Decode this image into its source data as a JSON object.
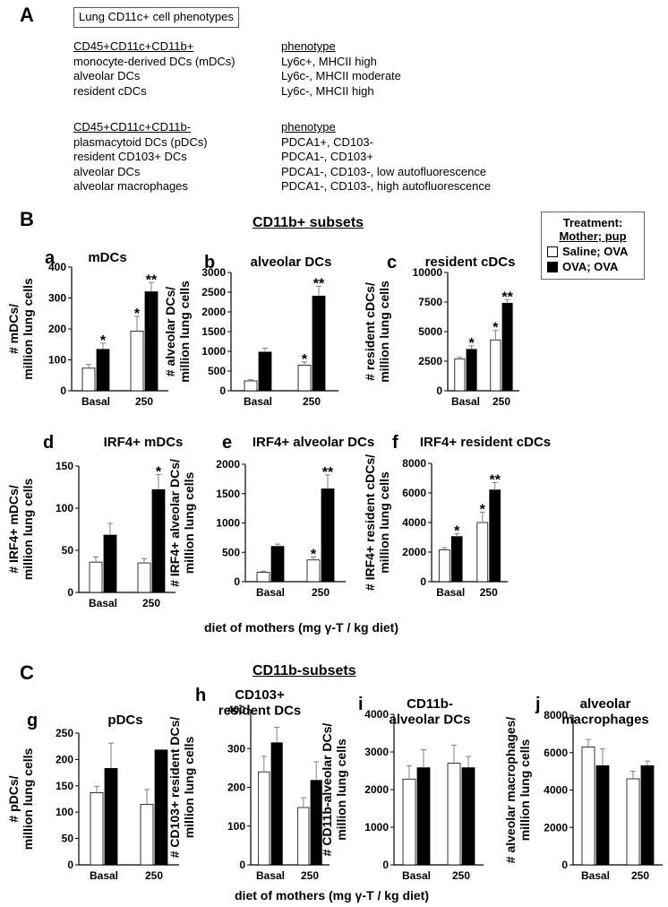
{
  "sections": {
    "A": "A",
    "B": "B",
    "C": "C"
  },
  "table": {
    "title": "Lung CD11c+ cell phenotypes",
    "group1": {
      "header": "CD45+CD11c+CD11b+",
      "pheno_header": "phenotype",
      "rows": [
        {
          "name": "monocyte-derived DCs (mDCs)",
          "pheno": "Ly6c+, MHCII high"
        },
        {
          "name": "alveolar DCs",
          "pheno": "Ly6c-, MHCII moderate"
        },
        {
          "name": "resident cDCs",
          "pheno": "Ly6c-, MHCII high"
        }
      ]
    },
    "group2": {
      "header": "CD45+CD11c+CD11b-",
      "pheno_header": "phenotype",
      "rows": [
        {
          "name": "plasmacytoid DCs (pDCs)",
          "pheno": "PDCA1+, CD103-"
        },
        {
          "name": "resident CD103+ DCs",
          "pheno": "PDCA1-, CD103+"
        },
        {
          "name": "alveolar DCs",
          "pheno": "PDCA1-, CD103-, low autofluorescence"
        },
        {
          "name": "alveolar macrophages",
          "pheno": "PDCA1-, CD103-, high autofluorescence"
        }
      ]
    }
  },
  "headers": {
    "b": "CD11b+ subsets",
    "c": "CD11b-subsets"
  },
  "legend": {
    "title": "Treatment:",
    "subtitle": "Mother; pup",
    "items": [
      {
        "label": "Saline; OVA",
        "color": "#ffffff"
      },
      {
        "label": "OVA; OVA",
        "color": "#000000"
      }
    ]
  },
  "footers": {
    "b": "diet of mothers (mg γ-T / kg diet)",
    "c": "diet of mothers (mg γ-T / kg diet)"
  },
  "colors": {
    "saline": "#ffffff",
    "ova": "#000000",
    "axis": "#000000",
    "error": "#808080"
  },
  "chart_data": [
    {
      "id": "a",
      "panel_letter": "a",
      "type": "bar",
      "title": "mDCs",
      "ylabel": "# mDCs/\nmillion lung cells",
      "categories": [
        "Basal",
        "250"
      ],
      "ylim": [
        0,
        400
      ],
      "yticks": [
        0,
        100,
        200,
        300,
        400
      ],
      "series": [
        {
          "name": "Saline; OVA",
          "values": [
            73,
            193
          ],
          "errors": [
            12,
            48
          ]
        },
        {
          "name": "OVA; OVA",
          "values": [
            134,
            320
          ],
          "errors": [
            20,
            30
          ]
        }
      ],
      "annotations": [
        [
          "",
          "*"
        ],
        [
          "*",
          "**"
        ]
      ]
    },
    {
      "id": "b",
      "panel_letter": "b",
      "type": "bar",
      "title": "alveolar DCs",
      "ylabel": "# alveolar DCs/\nmillion lung cells",
      "categories": [
        "Basal",
        "250"
      ],
      "ylim": [
        0,
        3000
      ],
      "yticks": [
        0,
        500,
        1000,
        1500,
        2000,
        2500,
        3000
      ],
      "series": [
        {
          "name": "Saline; OVA",
          "values": [
            250,
            650
          ],
          "errors": [
            30,
            80
          ]
        },
        {
          "name": "OVA; OVA",
          "values": [
            980,
            2400
          ],
          "errors": [
            100,
            250
          ]
        }
      ],
      "annotations": [
        [
          "",
          ""
        ],
        [
          "*",
          "**"
        ]
      ]
    },
    {
      "id": "c",
      "panel_letter": "c",
      "type": "bar",
      "title": "resident cDCs",
      "ylabel": "# resident cDCs/\nmillion lung cells",
      "categories": [
        "Basal",
        "250"
      ],
      "ylim": [
        0,
        10000
      ],
      "yticks": [
        0,
        2500,
        5000,
        7500,
        10000
      ],
      "series": [
        {
          "name": "Saline; OVA",
          "values": [
            2700,
            4300
          ],
          "errors": [
            150,
            800
          ]
        },
        {
          "name": "OVA; OVA",
          "values": [
            3500,
            7400
          ],
          "errors": [
            300,
            300
          ]
        }
      ],
      "annotations": [
        [
          "",
          "*"
        ],
        [
          "*",
          "**"
        ]
      ]
    },
    {
      "id": "d",
      "panel_letter": "d",
      "type": "bar",
      "title": "IRF4+ mDCs",
      "ylabel": "# IRF4+ mDCs/\nmillion lung cells",
      "categories": [
        "Basal",
        "250"
      ],
      "ylim": [
        0,
        150
      ],
      "yticks": [
        0,
        50,
        100,
        150
      ],
      "series": [
        {
          "name": "Saline; OVA",
          "values": [
            36,
            35
          ],
          "errors": [
            6,
            5
          ]
        },
        {
          "name": "OVA; OVA",
          "values": [
            68,
            122
          ],
          "errors": [
            14,
            18
          ]
        }
      ],
      "annotations": [
        [
          "",
          ""
        ],
        [
          "",
          "*"
        ]
      ]
    },
    {
      "id": "e",
      "panel_letter": "e",
      "type": "bar",
      "title": "IRF4+ alveolar DCs",
      "ylabel": "# IRF4+ alveolar DCs/\nmillion lung cells",
      "categories": [
        "Basal",
        "250"
      ],
      "ylim": [
        0,
        2000
      ],
      "yticks": [
        0,
        500,
        1000,
        1500,
        2000
      ],
      "series": [
        {
          "name": "Saline; OVA",
          "values": [
            160,
            370
          ],
          "errors": [
            20,
            50
          ]
        },
        {
          "name": "OVA; OVA",
          "values": [
            600,
            1580
          ],
          "errors": [
            40,
            240
          ]
        }
      ],
      "annotations": [
        [
          "",
          ""
        ],
        [
          "*",
          "**"
        ]
      ]
    },
    {
      "id": "f",
      "panel_letter": "f",
      "type": "bar",
      "title": "IRF4+ resident cDCs",
      "ylabel": "# IRF4+ resident cDCs/\nmillion lung cells",
      "categories": [
        "Basal",
        "250"
      ],
      "ylim": [
        0,
        8000
      ],
      "yticks": [
        0,
        2000,
        4000,
        6000,
        8000
      ],
      "series": [
        {
          "name": "Saline; OVA",
          "values": [
            2150,
            4000
          ],
          "errors": [
            150,
            700
          ]
        },
        {
          "name": "OVA; OVA",
          "values": [
            3050,
            6200
          ],
          "errors": [
            200,
            500
          ]
        }
      ],
      "annotations": [
        [
          "",
          "*"
        ],
        [
          "*",
          "**"
        ]
      ]
    },
    {
      "id": "g",
      "panel_letter": "g",
      "type": "bar",
      "title": "pDCs",
      "ylabel": "# pDCs/\nmillion lung cells",
      "categories": [
        "Basal",
        "250"
      ],
      "ylim": [
        0,
        250
      ],
      "yticks": [
        0,
        50,
        100,
        150,
        200,
        250
      ],
      "series": [
        {
          "name": "Saline; OVA",
          "values": [
            137,
            115
          ],
          "errors": [
            12,
            28
          ]
        },
        {
          "name": "OVA; OVA",
          "values": [
            183,
            218
          ],
          "errors": [
            48,
            0
          ]
        }
      ],
      "annotations": [
        [
          "",
          ""
        ],
        [
          "",
          ""
        ]
      ]
    },
    {
      "id": "h",
      "panel_letter": "h",
      "type": "bar",
      "title": "CD103+\nresident DCs",
      "ylabel": "# CD103+ resident DCs/\nmillion lung cells",
      "categories": [
        "Basal",
        "250"
      ],
      "ylim": [
        0,
        400
      ],
      "yticks": [
        0,
        100,
        200,
        300,
        400
      ],
      "series": [
        {
          "name": "Saline; OVA",
          "values": [
            240,
            148
          ],
          "errors": [
            40,
            25
          ]
        },
        {
          "name": "OVA; OVA",
          "values": [
            315,
            218
          ],
          "errors": [
            40,
            48
          ]
        }
      ],
      "annotations": [
        [
          "",
          ""
        ],
        [
          "",
          ""
        ]
      ]
    },
    {
      "id": "i",
      "panel_letter": "i",
      "type": "bar",
      "title": "CD11b-\nalveolar DCs",
      "ylabel": "# CD11b-alveolar DCs/\nmillion lung cells",
      "categories": [
        "Basal",
        "250"
      ],
      "ylim": [
        0,
        4000
      ],
      "yticks": [
        0,
        1000,
        2000,
        3000,
        4000
      ],
      "series": [
        {
          "name": "Saline; OVA",
          "values": [
            2280,
            2700
          ],
          "errors": [
            350,
            480
          ]
        },
        {
          "name": "OVA; OVA",
          "values": [
            2580,
            2580
          ],
          "errors": [
            480,
            300
          ]
        }
      ],
      "annotations": [
        [
          "",
          ""
        ],
        [
          "",
          ""
        ]
      ]
    },
    {
      "id": "j",
      "panel_letter": "j",
      "type": "bar",
      "title": "alveolar\nmacrophages",
      "ylabel": "# alveolar macrophages/\nmillion lung cells",
      "categories": [
        "Basal",
        "250"
      ],
      "ylim": [
        0,
        8000
      ],
      "yticks": [
        0,
        2000,
        4000,
        6000,
        8000
      ],
      "series": [
        {
          "name": "Saline; OVA",
          "values": [
            6300,
            4600
          ],
          "errors": [
            400,
            400
          ]
        },
        {
          "name": "OVA; OVA",
          "values": [
            5300,
            5300
          ],
          "errors": [
            900,
            250
          ]
        }
      ],
      "annotations": [
        [
          "",
          ""
        ],
        [
          "",
          ""
        ]
      ]
    }
  ]
}
